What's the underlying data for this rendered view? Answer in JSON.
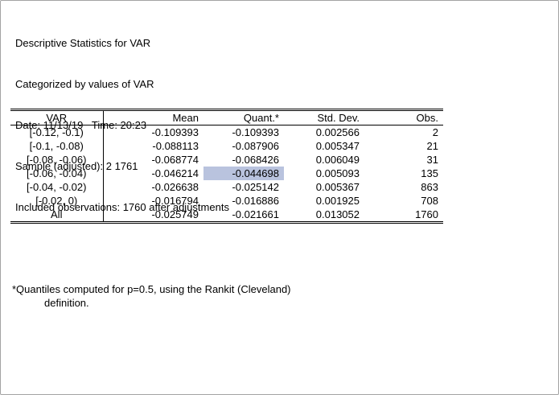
{
  "colors": {
    "selection_bg": "#b9c3de",
    "window_border": "#a3a3a3",
    "rule_color": "#000000"
  },
  "header": {
    "line1": "Descriptive Statistics for VAR",
    "line2": "Categorized by values of VAR",
    "line3": "Date: 11/13/19   Time: 20:23",
    "line4": "Sample (adjusted): 2 1761",
    "line5": "Included observations: 1760 after adjustments"
  },
  "table": {
    "columns": [
      "VAR",
      "Mean",
      "Quant.*",
      "Std. Dev.",
      "Obs."
    ],
    "rows": [
      [
        "[-0.12, -0.1)",
        "-0.109393",
        "-0.109393",
        "0.002566",
        "2"
      ],
      [
        "[-0.1, -0.08)",
        "-0.088113",
        "-0.087906",
        "0.005347",
        "21"
      ],
      [
        "[-0.08, -0.06)",
        "-0.068774",
        "-0.068426",
        "0.006049",
        "31"
      ],
      [
        "[-0.06, -0.04)",
        "-0.046214",
        "-0.044698",
        "0.005093",
        "135"
      ],
      [
        "[-0.04, -0.02)",
        "-0.026638",
        "-0.025142",
        "0.005367",
        "863"
      ],
      [
        "[-0.02, 0)",
        "-0.016794",
        "-0.016886",
        "0.001925",
        "708"
      ],
      [
        "All",
        "-0.025749",
        "-0.021661",
        "0.013052",
        "1760"
      ]
    ],
    "selected_cell": {
      "row": 3,
      "col": 2,
      "value": "-0.044698"
    }
  },
  "footnote": {
    "line1": "*Quantiles computed for p=0.5, using the Rankit (Cleveland)",
    "line2": "definition."
  }
}
